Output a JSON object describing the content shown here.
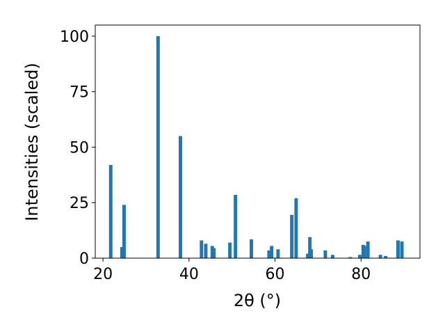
{
  "chart_data": {
    "type": "bar",
    "xlabel": "2θ (°)",
    "ylabel": "Intensities (scaled)",
    "color": "#1f77b4",
    "x": [
      21.8,
      24.4,
      24.9,
      32.8,
      38.0,
      42.9,
      43.9,
      45.4,
      45.8,
      49.5,
      50.8,
      54.5,
      58.6,
      59.2,
      60.7,
      63.9,
      64.9,
      67.6,
      68.1,
      68.4,
      71.7,
      73.4,
      77.5,
      79.7,
      80.5,
      80.8,
      81.6,
      84.5,
      85.7,
      88.6,
      89.5
    ],
    "values": [
      42,
      5,
      24,
      100,
      55,
      8,
      6.5,
      5.5,
      4.5,
      7,
      28.5,
      8.5,
      3.5,
      5.5,
      4,
      19.5,
      27,
      2,
      9.5,
      4,
      3.5,
      1.5,
      0.5,
      1.5,
      6,
      5.5,
      7.5,
      1.5,
      1,
      8,
      7.5
    ],
    "xlim": [
      18.2,
      93.7
    ],
    "ylim": [
      0,
      105
    ],
    "xticks": [
      20,
      40,
      60,
      80
    ],
    "yticks": [
      0,
      25,
      50,
      75,
      100
    ]
  }
}
